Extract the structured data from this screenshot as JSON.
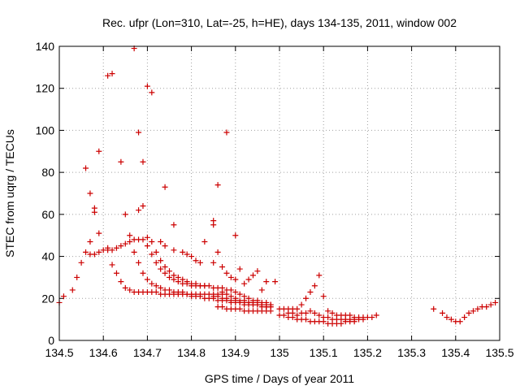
{
  "chart_data": {
    "type": "scatter",
    "title": "Rec. ufpr (Lon=310, Lat=-25, h=HE), days 134-135, 2011, window 002",
    "xlabel": "GPS time / Days of year 2011",
    "ylabel": "STEC from uqrg / TECUs",
    "xlim": [
      134.5,
      135.5
    ],
    "ylim": [
      0,
      140
    ],
    "xticks": [
      134.5,
      134.6,
      134.7,
      134.8,
      134.9,
      135,
      135.1,
      135.2,
      135.3,
      135.4,
      135.5
    ],
    "xtick_labels": [
      "134.5",
      "134.6",
      "134.7",
      "134.8",
      "134.9",
      "135",
      "135.1",
      "135.2",
      "135.3",
      "135.4",
      "135.5"
    ],
    "yticks": [
      0,
      20,
      40,
      60,
      80,
      100,
      120,
      140
    ],
    "ytick_labels": [
      "0",
      "20",
      "40",
      "60",
      "80",
      "100",
      "120",
      "140"
    ],
    "grid": true,
    "marker": "plus",
    "color": "#cc0000",
    "points": [
      [
        134.5,
        18
      ],
      [
        134.51,
        21
      ],
      [
        134.53,
        24
      ],
      [
        134.54,
        30
      ],
      [
        134.55,
        37
      ],
      [
        134.56,
        42
      ],
      [
        134.57,
        41
      ],
      [
        134.58,
        41
      ],
      [
        134.59,
        42
      ],
      [
        134.6,
        43
      ],
      [
        134.61,
        43
      ],
      [
        134.62,
        43
      ],
      [
        134.63,
        44
      ],
      [
        134.64,
        45
      ],
      [
        134.65,
        46
      ],
      [
        134.66,
        47
      ],
      [
        134.67,
        48
      ],
      [
        134.68,
        48
      ],
      [
        134.69,
        48
      ],
      [
        134.7,
        49
      ],
      [
        134.56,
        82
      ],
      [
        134.57,
        70
      ],
      [
        134.58,
        63
      ],
      [
        134.58,
        61
      ],
      [
        134.59,
        90
      ],
      [
        134.59,
        51
      ],
      [
        134.57,
        47
      ],
      [
        134.61,
        126
      ],
      [
        134.62,
        127
      ],
      [
        134.64,
        85
      ],
      [
        134.65,
        60
      ],
      [
        134.67,
        139
      ],
      [
        134.68,
        99
      ],
      [
        134.68,
        62
      ],
      [
        134.69,
        85
      ],
      [
        134.69,
        64
      ],
      [
        134.7,
        121
      ],
      [
        134.71,
        118
      ],
      [
        134.74,
        73
      ],
      [
        134.76,
        55
      ],
      [
        134.85,
        57
      ],
      [
        134.85,
        55
      ],
      [
        134.86,
        74
      ],
      [
        134.88,
        99
      ],
      [
        134.9,
        50
      ],
      [
        134.61,
        44
      ],
      [
        134.62,
        36
      ],
      [
        134.63,
        32
      ],
      [
        134.64,
        28
      ],
      [
        134.65,
        25
      ],
      [
        134.66,
        24
      ],
      [
        134.67,
        23
      ],
      [
        134.68,
        23
      ],
      [
        134.69,
        23
      ],
      [
        134.7,
        23
      ],
      [
        134.71,
        23
      ],
      [
        134.72,
        23
      ],
      [
        134.73,
        22
      ],
      [
        134.74,
        22
      ],
      [
        134.75,
        22
      ],
      [
        134.76,
        22
      ],
      [
        134.77,
        22
      ],
      [
        134.78,
        22
      ],
      [
        134.79,
        22
      ],
      [
        134.8,
        22
      ],
      [
        134.81,
        22
      ],
      [
        134.82,
        22
      ],
      [
        134.83,
        22
      ],
      [
        134.84,
        22
      ],
      [
        134.85,
        22
      ],
      [
        134.86,
        22
      ],
      [
        134.87,
        22
      ],
      [
        134.66,
        50
      ],
      [
        134.67,
        42
      ],
      [
        134.68,
        37
      ],
      [
        134.69,
        32
      ],
      [
        134.7,
        29
      ],
      [
        134.71,
        27
      ],
      [
        134.72,
        26
      ],
      [
        134.73,
        25
      ],
      [
        134.74,
        24
      ],
      [
        134.75,
        24
      ],
      [
        134.76,
        23
      ],
      [
        134.77,
        23
      ],
      [
        134.78,
        23
      ],
      [
        134.79,
        22
      ],
      [
        134.8,
        22
      ],
      [
        134.7,
        45
      ],
      [
        134.71,
        41
      ],
      [
        134.72,
        37
      ],
      [
        134.73,
        34
      ],
      [
        134.74,
        32
      ],
      [
        134.75,
        30
      ],
      [
        134.76,
        29
      ],
      [
        134.77,
        28
      ],
      [
        134.78,
        27
      ],
      [
        134.79,
        27
      ],
      [
        134.8,
        26
      ],
      [
        134.81,
        26
      ],
      [
        134.82,
        26
      ],
      [
        134.83,
        26
      ],
      [
        134.84,
        26
      ],
      [
        134.85,
        25
      ],
      [
        134.86,
        25
      ],
      [
        134.87,
        25
      ],
      [
        134.88,
        24
      ],
      [
        134.71,
        47
      ],
      [
        134.72,
        42
      ],
      [
        134.73,
        38
      ],
      [
        134.74,
        35
      ],
      [
        134.75,
        33
      ],
      [
        134.76,
        31
      ],
      [
        134.77,
        30
      ],
      [
        134.78,
        29
      ],
      [
        134.79,
        28
      ],
      [
        134.8,
        27
      ],
      [
        134.81,
        27
      ],
      [
        134.82,
        26
      ],
      [
        134.83,
        26
      ],
      [
        134.73,
        47
      ],
      [
        134.74,
        45
      ],
      [
        134.76,
        43
      ],
      [
        134.78,
        42
      ],
      [
        134.79,
        41
      ],
      [
        134.8,
        40
      ],
      [
        134.81,
        38
      ],
      [
        134.82,
        37
      ],
      [
        134.83,
        47
      ],
      [
        134.85,
        37
      ],
      [
        134.86,
        42
      ],
      [
        134.87,
        35
      ],
      [
        134.88,
        32
      ],
      [
        134.89,
        30
      ],
      [
        134.9,
        29
      ],
      [
        134.91,
        34
      ],
      [
        134.92,
        27
      ],
      [
        134.93,
        29
      ],
      [
        134.94,
        31
      ],
      [
        134.95,
        33
      ],
      [
        134.96,
        24
      ],
      [
        134.97,
        28
      ],
      [
        134.8,
        21
      ],
      [
        134.81,
        21
      ],
      [
        134.82,
        21
      ],
      [
        134.83,
        20
      ],
      [
        134.84,
        20
      ],
      [
        134.85,
        20
      ],
      [
        134.86,
        19
      ],
      [
        134.87,
        19
      ],
      [
        134.88,
        19
      ],
      [
        134.89,
        18
      ],
      [
        134.9,
        18
      ],
      [
        134.91,
        18
      ],
      [
        134.92,
        17
      ],
      [
        134.93,
        17
      ],
      [
        134.94,
        17
      ],
      [
        134.95,
        17
      ],
      [
        134.96,
        16
      ],
      [
        134.97,
        16
      ],
      [
        134.98,
        16
      ],
      [
        134.85,
        21
      ],
      [
        134.86,
        21
      ],
      [
        134.87,
        20
      ],
      [
        134.88,
        20
      ],
      [
        134.89,
        19
      ],
      [
        134.9,
        19
      ],
      [
        134.91,
        18
      ],
      [
        134.92,
        18
      ],
      [
        134.93,
        18
      ],
      [
        134.94,
        17
      ],
      [
        134.95,
        17
      ],
      [
        134.96,
        17
      ],
      [
        134.97,
        16
      ],
      [
        134.98,
        16
      ],
      [
        134.87,
        23
      ],
      [
        134.88,
        22
      ],
      [
        134.89,
        21
      ],
      [
        134.9,
        20
      ],
      [
        134.91,
        19
      ],
      [
        134.92,
        19
      ],
      [
        134.93,
        18
      ],
      [
        134.94,
        18
      ],
      [
        134.95,
        18
      ],
      [
        134.96,
        17
      ],
      [
        134.97,
        17
      ],
      [
        134.98,
        17
      ],
      [
        134.86,
        16
      ],
      [
        134.87,
        16
      ],
      [
        134.88,
        15
      ],
      [
        134.89,
        15
      ],
      [
        134.9,
        15
      ],
      [
        134.91,
        15
      ],
      [
        134.92,
        14
      ],
      [
        134.93,
        14
      ],
      [
        134.94,
        14
      ],
      [
        134.95,
        14
      ],
      [
        134.96,
        14
      ],
      [
        134.97,
        14
      ],
      [
        134.98,
        14
      ],
      [
        134.89,
        24
      ],
      [
        134.9,
        23
      ],
      [
        134.91,
        22
      ],
      [
        134.92,
        21
      ],
      [
        134.93,
        20
      ],
      [
        134.94,
        19
      ],
      [
        134.95,
        19
      ],
      [
        134.96,
        18
      ],
      [
        134.97,
        18
      ],
      [
        134.98,
        17
      ],
      [
        134.99,
        28
      ],
      [
        135.0,
        12
      ],
      [
        135.01,
        12
      ],
      [
        135.02,
        11
      ],
      [
        135.03,
        11
      ],
      [
        135.04,
        10
      ],
      [
        135.05,
        10
      ],
      [
        135.06,
        10
      ],
      [
        135.07,
        9
      ],
      [
        135.08,
        9
      ],
      [
        135.09,
        9
      ],
      [
        135.1,
        9
      ],
      [
        135.11,
        8
      ],
      [
        135.12,
        8
      ],
      [
        135.13,
        8
      ],
      [
        135.14,
        8
      ],
      [
        135.15,
        9
      ],
      [
        135.16,
        9
      ],
      [
        135.17,
        9
      ],
      [
        135.18,
        10
      ],
      [
        135.19,
        10
      ],
      [
        135.0,
        15
      ],
      [
        135.01,
        15
      ],
      [
        135.02,
        15
      ],
      [
        135.03,
        15
      ],
      [
        135.04,
        15
      ],
      [
        135.05,
        17
      ],
      [
        135.06,
        20
      ],
      [
        135.07,
        23
      ],
      [
        135.08,
        26
      ],
      [
        135.09,
        31
      ],
      [
        135.1,
        21
      ],
      [
        135.11,
        14
      ],
      [
        135.12,
        13
      ],
      [
        135.13,
        12
      ],
      [
        135.14,
        12
      ],
      [
        135.15,
        12
      ],
      [
        135.16,
        12
      ],
      [
        135.17,
        11
      ],
      [
        135.18,
        11
      ],
      [
        135.19,
        11
      ],
      [
        135.2,
        11
      ],
      [
        135.21,
        11
      ],
      [
        135.22,
        12
      ],
      [
        135.02,
        13
      ],
      [
        135.03,
        13
      ],
      [
        135.04,
        12
      ],
      [
        135.05,
        13
      ],
      [
        135.06,
        13
      ],
      [
        135.07,
        14
      ],
      [
        135.08,
        13
      ],
      [
        135.09,
        12
      ],
      [
        135.1,
        11
      ],
      [
        135.11,
        11
      ],
      [
        135.12,
        10
      ],
      [
        135.13,
        10
      ],
      [
        135.14,
        10
      ],
      [
        135.15,
        10
      ],
      [
        135.16,
        10
      ],
      [
        135.17,
        10
      ],
      [
        135.35,
        15
      ],
      [
        135.37,
        13
      ],
      [
        135.38,
        11
      ],
      [
        135.39,
        10
      ],
      [
        135.4,
        9
      ],
      [
        135.41,
        9
      ],
      [
        135.42,
        11
      ],
      [
        135.43,
        13
      ],
      [
        135.44,
        14
      ],
      [
        135.45,
        15
      ],
      [
        135.46,
        16
      ],
      [
        135.47,
        16
      ],
      [
        135.48,
        17
      ],
      [
        135.49,
        18
      ]
    ]
  }
}
